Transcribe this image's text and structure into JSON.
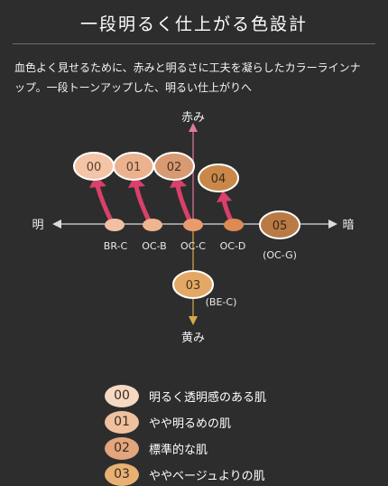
{
  "header": {
    "title": "一段明るく仕上がる色設計",
    "description_line1": "血色よく見せるために、赤みと明るさに工夫を凝らしたカラーラインナ",
    "description_line2": "ップ。一段トーンアップした、明るい仕上がりへ"
  },
  "axes": {
    "top": "赤み",
    "bottom": "黄み",
    "left": "明",
    "right": "暗"
  },
  "base_shades": [
    "BR-C",
    "OC-B",
    "OC-C",
    "OC-D"
  ],
  "shades": [
    {
      "code": "00",
      "color": "#f4c4a6"
    },
    {
      "code": "01",
      "color": "#ebb28d"
    },
    {
      "code": "02",
      "color": "#d89a72"
    },
    {
      "code": "04",
      "color": "#c98849"
    },
    {
      "code": "05",
      "color": "#ba7a45",
      "base": "(OC-G)"
    },
    {
      "code": "03",
      "color": "#e3a865",
      "base": "(BE-C)"
    }
  ],
  "arrow_color": "#d9406a",
  "legend": [
    {
      "code": "00",
      "label": "明るく透明感のある肌",
      "color": "#f6d9c3"
    },
    {
      "code": "01",
      "label": "やや明るめの肌",
      "color": "#f0c19f"
    },
    {
      "code": "02",
      "label": "標準的な肌",
      "color": "#e2a57c"
    },
    {
      "code": "03",
      "label": "ややベージュよりの肌",
      "color": "#e8b072"
    }
  ]
}
